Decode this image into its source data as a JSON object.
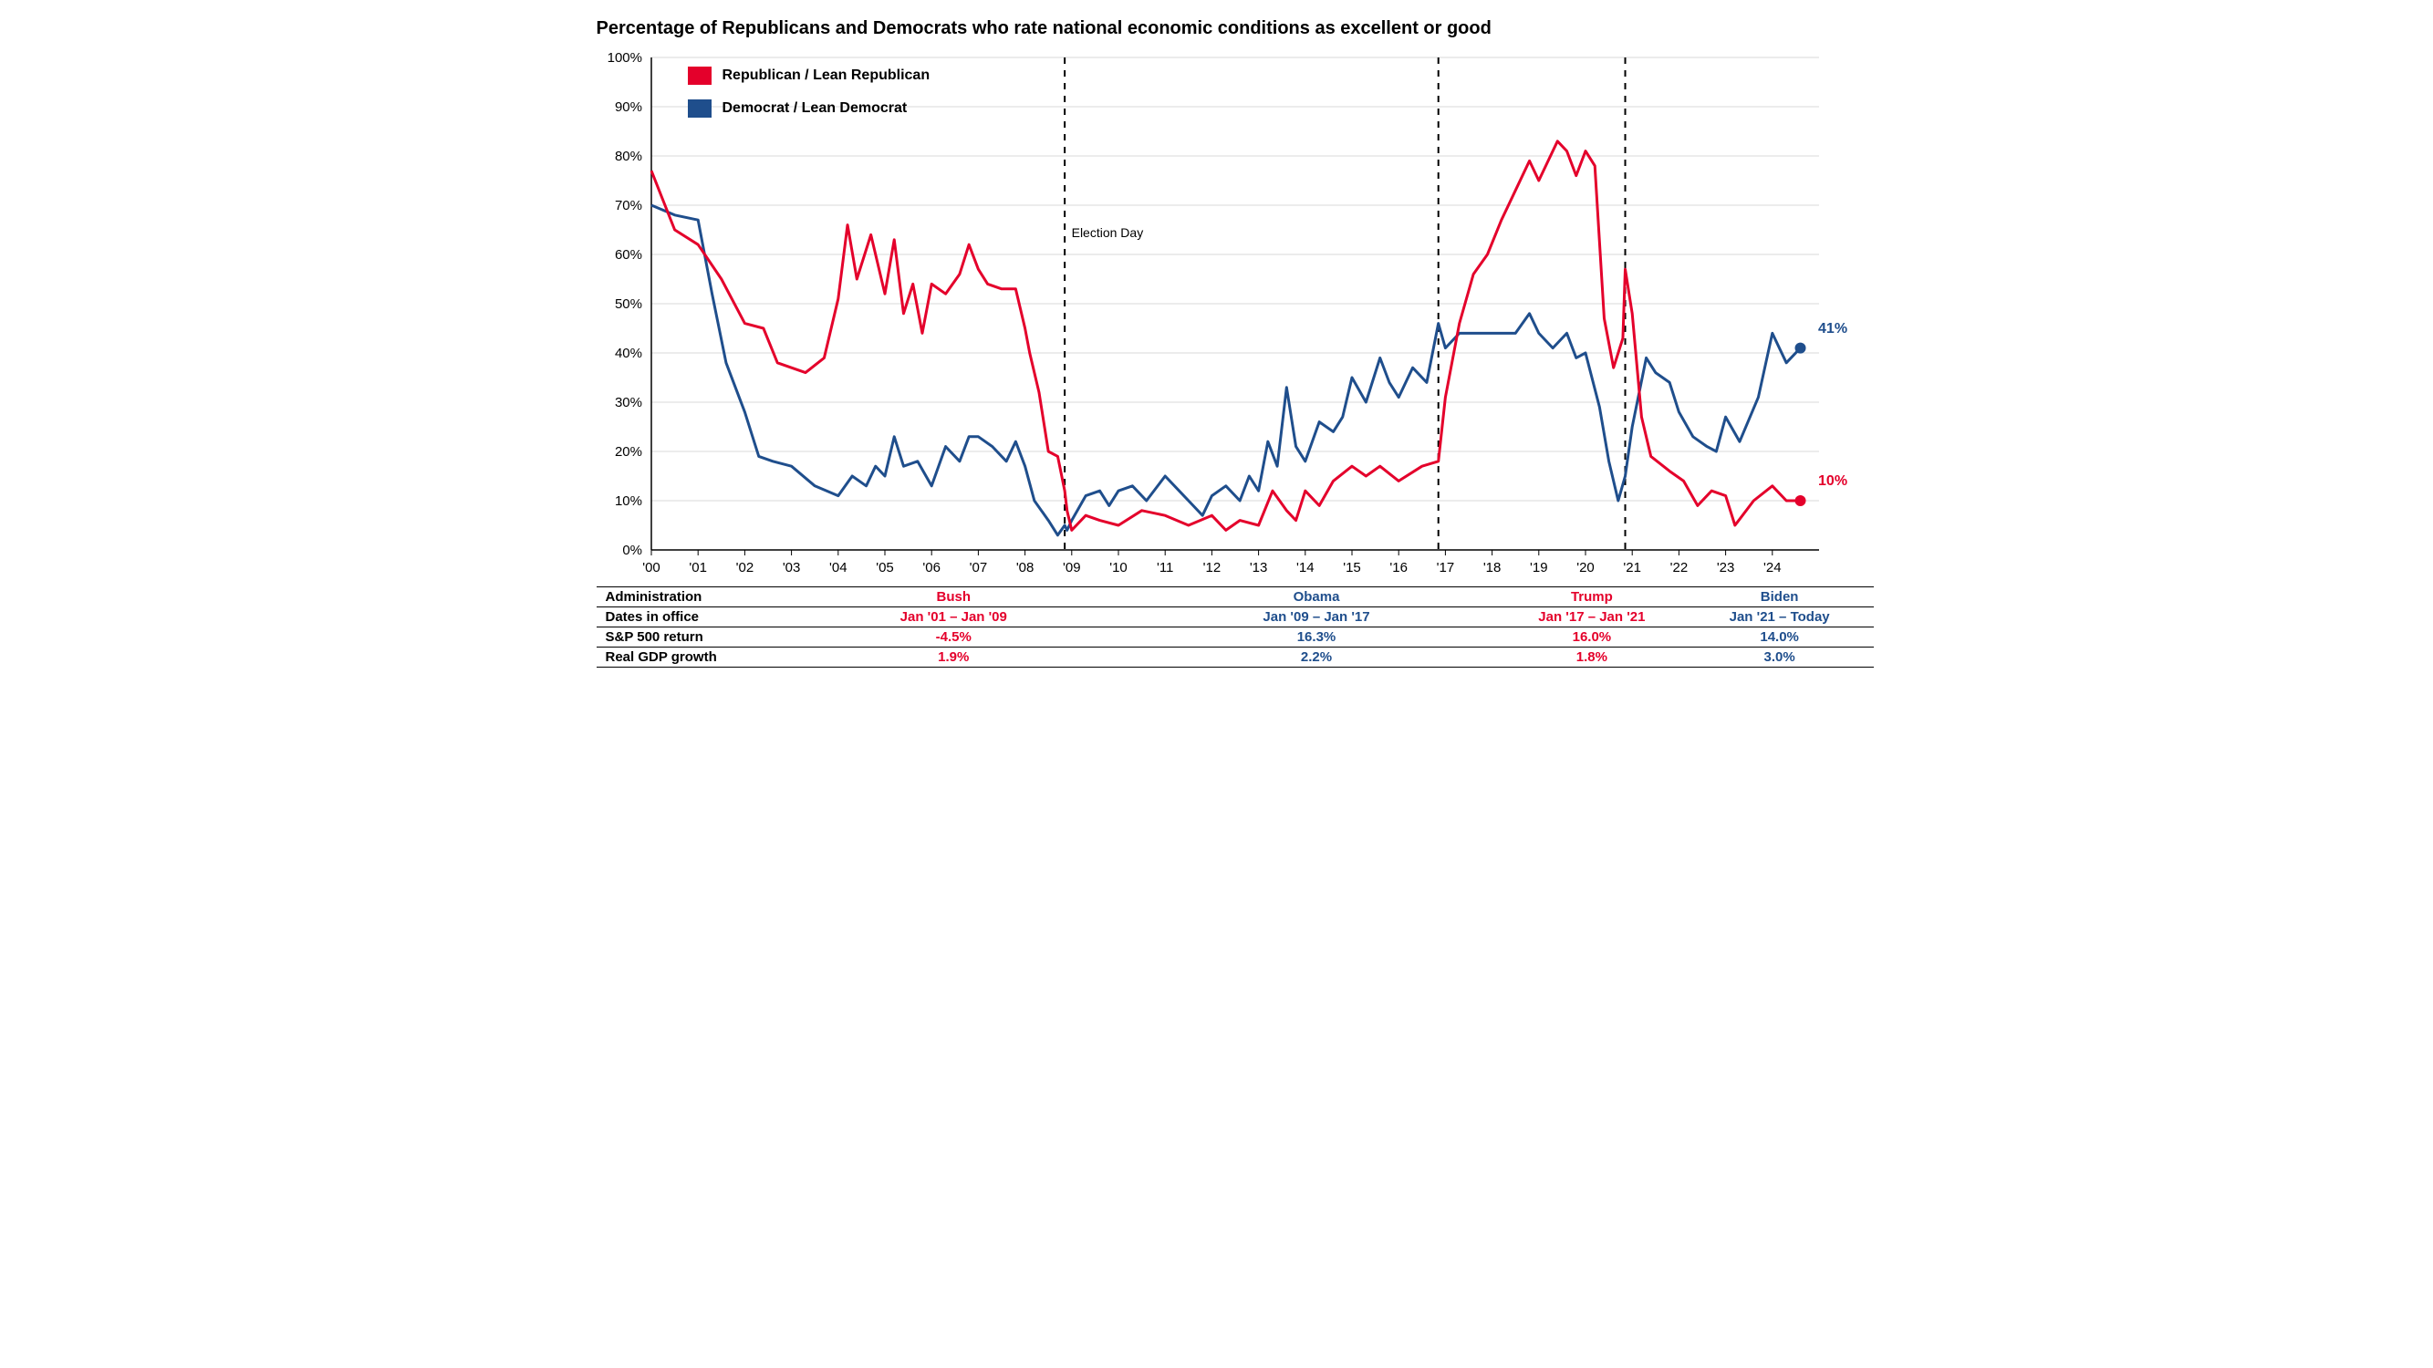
{
  "title": "Percentage of Republicans and Democrats who rate national economic conditions as excellent or good",
  "legend": {
    "rep": "Republican / Lean Republican",
    "dem": "Democrat / Lean Democrat"
  },
  "colors": {
    "rep": "#e4002b",
    "dem": "#1f4e8c",
    "grid": "#d9d9d9",
    "axis": "#000000",
    "text": "#000000",
    "bg": "#ffffff"
  },
  "chart": {
    "type": "line",
    "ylim": [
      0,
      100
    ],
    "ytick_step": 10,
    "xlim": [
      2000,
      2025
    ],
    "xticks": [
      "'00",
      "'01",
      "'02",
      "'03",
      "'04",
      "'05",
      "'06",
      "'07",
      "'08",
      "'09",
      "'10",
      "'11",
      "'12",
      "'13",
      "'14",
      "'15",
      "'16",
      "'17",
      "'18",
      "'19",
      "'20",
      "'21",
      "'22",
      "'23",
      "'24"
    ],
    "line_width": 3,
    "grid_on": true,
    "election_days": [
      2008.85,
      2016.85,
      2020.85
    ],
    "election_label": "Election Day",
    "end_label_rep": "10%",
    "end_label_dem": "41%",
    "series": {
      "rep": [
        [
          2000.0,
          77
        ],
        [
          2000.5,
          65
        ],
        [
          2001.0,
          62
        ],
        [
          2001.5,
          55
        ],
        [
          2002.0,
          46
        ],
        [
          2002.4,
          45
        ],
        [
          2002.7,
          38
        ],
        [
          2003.0,
          37
        ],
        [
          2003.3,
          36
        ],
        [
          2003.7,
          39
        ],
        [
          2004.0,
          51
        ],
        [
          2004.2,
          66
        ],
        [
          2004.4,
          55
        ],
        [
          2004.7,
          64
        ],
        [
          2005.0,
          52
        ],
        [
          2005.2,
          63
        ],
        [
          2005.4,
          48
        ],
        [
          2005.6,
          54
        ],
        [
          2005.8,
          44
        ],
        [
          2006.0,
          54
        ],
        [
          2006.3,
          52
        ],
        [
          2006.6,
          56
        ],
        [
          2006.8,
          62
        ],
        [
          2007.0,
          57
        ],
        [
          2007.2,
          54
        ],
        [
          2007.5,
          53
        ],
        [
          2007.8,
          53
        ],
        [
          2008.0,
          45
        ],
        [
          2008.1,
          40
        ],
        [
          2008.3,
          32
        ],
        [
          2008.5,
          20
        ],
        [
          2008.7,
          19
        ],
        [
          2008.85,
          12
        ],
        [
          2008.9,
          8
        ],
        [
          2009.0,
          4
        ],
        [
          2009.3,
          7
        ],
        [
          2009.6,
          6
        ],
        [
          2010.0,
          5
        ],
        [
          2010.5,
          8
        ],
        [
          2011.0,
          7
        ],
        [
          2011.5,
          5
        ],
        [
          2012.0,
          7
        ],
        [
          2012.3,
          4
        ],
        [
          2012.6,
          6
        ],
        [
          2013.0,
          5
        ],
        [
          2013.3,
          12
        ],
        [
          2013.6,
          8
        ],
        [
          2013.8,
          6
        ],
        [
          2014.0,
          12
        ],
        [
          2014.3,
          9
        ],
        [
          2014.6,
          14
        ],
        [
          2015.0,
          17
        ],
        [
          2015.3,
          15
        ],
        [
          2015.6,
          17
        ],
        [
          2016.0,
          14
        ],
        [
          2016.5,
          17
        ],
        [
          2016.85,
          18
        ],
        [
          2017.0,
          31
        ],
        [
          2017.3,
          46
        ],
        [
          2017.6,
          56
        ],
        [
          2017.9,
          60
        ],
        [
          2018.2,
          67
        ],
        [
          2018.5,
          73
        ],
        [
          2018.8,
          79
        ],
        [
          2019.0,
          75
        ],
        [
          2019.2,
          79
        ],
        [
          2019.4,
          83
        ],
        [
          2019.6,
          81
        ],
        [
          2019.8,
          76
        ],
        [
          2020.0,
          81
        ],
        [
          2020.2,
          78
        ],
        [
          2020.4,
          47
        ],
        [
          2020.6,
          37
        ],
        [
          2020.8,
          43
        ],
        [
          2020.85,
          57
        ],
        [
          2021.0,
          48
        ],
        [
          2021.2,
          27
        ],
        [
          2021.4,
          19
        ],
        [
          2021.8,
          16
        ],
        [
          2022.1,
          14
        ],
        [
          2022.4,
          9
        ],
        [
          2022.7,
          12
        ],
        [
          2023.0,
          11
        ],
        [
          2023.2,
          5
        ],
        [
          2023.6,
          10
        ],
        [
          2024.0,
          13
        ],
        [
          2024.3,
          10
        ],
        [
          2024.6,
          10
        ]
      ],
      "dem": [
        [
          2000.0,
          70
        ],
        [
          2000.5,
          68
        ],
        [
          2001.0,
          67
        ],
        [
          2001.3,
          52
        ],
        [
          2001.6,
          38
        ],
        [
          2002.0,
          28
        ],
        [
          2002.3,
          19
        ],
        [
          2002.6,
          18
        ],
        [
          2003.0,
          17
        ],
        [
          2003.5,
          13
        ],
        [
          2004.0,
          11
        ],
        [
          2004.3,
          15
        ],
        [
          2004.6,
          13
        ],
        [
          2004.8,
          17
        ],
        [
          2005.0,
          15
        ],
        [
          2005.2,
          23
        ],
        [
          2005.4,
          17
        ],
        [
          2005.7,
          18
        ],
        [
          2006.0,
          13
        ],
        [
          2006.3,
          21
        ],
        [
          2006.6,
          18
        ],
        [
          2006.8,
          23
        ],
        [
          2007.0,
          23
        ],
        [
          2007.3,
          21
        ],
        [
          2007.6,
          18
        ],
        [
          2007.8,
          22
        ],
        [
          2008.0,
          17
        ],
        [
          2008.2,
          10
        ],
        [
          2008.5,
          6
        ],
        [
          2008.7,
          3
        ],
        [
          2008.85,
          5
        ],
        [
          2008.9,
          4
        ],
        [
          2009.0,
          6
        ],
        [
          2009.3,
          11
        ],
        [
          2009.6,
          12
        ],
        [
          2009.8,
          9
        ],
        [
          2010.0,
          12
        ],
        [
          2010.3,
          13
        ],
        [
          2010.6,
          10
        ],
        [
          2011.0,
          15
        ],
        [
          2011.3,
          12
        ],
        [
          2011.6,
          9
        ],
        [
          2011.8,
          7
        ],
        [
          2012.0,
          11
        ],
        [
          2012.3,
          13
        ],
        [
          2012.6,
          10
        ],
        [
          2012.8,
          15
        ],
        [
          2013.0,
          12
        ],
        [
          2013.2,
          22
        ],
        [
          2013.4,
          17
        ],
        [
          2013.6,
          33
        ],
        [
          2013.8,
          21
        ],
        [
          2014.0,
          18
        ],
        [
          2014.3,
          26
        ],
        [
          2014.6,
          24
        ],
        [
          2014.8,
          27
        ],
        [
          2015.0,
          35
        ],
        [
          2015.3,
          30
        ],
        [
          2015.6,
          39
        ],
        [
          2015.8,
          34
        ],
        [
          2016.0,
          31
        ],
        [
          2016.3,
          37
        ],
        [
          2016.6,
          34
        ],
        [
          2016.85,
          46
        ],
        [
          2017.0,
          41
        ],
        [
          2017.3,
          44
        ],
        [
          2017.6,
          44
        ],
        [
          2018.0,
          44
        ],
        [
          2018.5,
          44
        ],
        [
          2018.8,
          48
        ],
        [
          2019.0,
          44
        ],
        [
          2019.3,
          41
        ],
        [
          2019.6,
          44
        ],
        [
          2019.8,
          39
        ],
        [
          2020.0,
          40
        ],
        [
          2020.3,
          29
        ],
        [
          2020.5,
          18
        ],
        [
          2020.7,
          10
        ],
        [
          2020.85,
          15
        ],
        [
          2021.0,
          25
        ],
        [
          2021.3,
          39
        ],
        [
          2021.5,
          36
        ],
        [
          2021.8,
          34
        ],
        [
          2022.0,
          28
        ],
        [
          2022.3,
          23
        ],
        [
          2022.6,
          21
        ],
        [
          2022.8,
          20
        ],
        [
          2023.0,
          27
        ],
        [
          2023.3,
          22
        ],
        [
          2023.7,
          31
        ],
        [
          2024.0,
          44
        ],
        [
          2024.3,
          38
        ],
        [
          2024.6,
          41
        ]
      ]
    }
  },
  "table": {
    "headers": [
      "Administration",
      "Dates in office",
      "S&P 500 return",
      "Real GDP growth"
    ],
    "cols": [
      {
        "label": "Bush",
        "dates": "Jan '01 – Jan '09",
        "sp": "-4.5%",
        "gdp": "1.9%",
        "color": "#e4002b",
        "span": [
          2001,
          2009
        ]
      },
      {
        "label": "Obama",
        "dates": "Jan '09 – Jan '17",
        "sp": "16.3%",
        "gdp": "2.2%",
        "color": "#1f4e8c",
        "span": [
          2009,
          2017
        ]
      },
      {
        "label": "Trump",
        "dates": "Jan '17 – Jan '21",
        "sp": "16.0%",
        "gdp": "1.8%",
        "color": "#e4002b",
        "span": [
          2017,
          2021
        ]
      },
      {
        "label": "Biden",
        "dates": "Jan '21 – Today",
        "sp": "14.0%",
        "gdp": "3.0%",
        "color": "#1f4e8c",
        "span": [
          2021,
          2025
        ]
      }
    ]
  }
}
